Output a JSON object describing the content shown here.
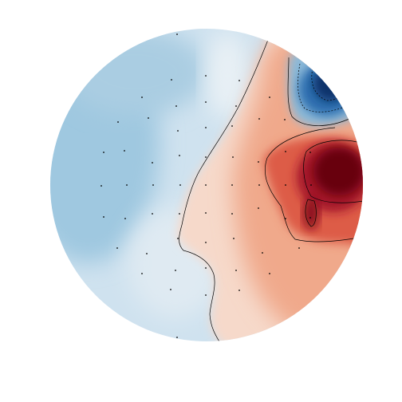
{
  "figure": {
    "type": "eeg-topomap",
    "colormap": "RdBu_r",
    "colors": {
      "deep_blue": "#08306b",
      "mid_blue": "#2f6fb0",
      "light_blue": "#a7cde3",
      "pale_blue": "#dbe9f3",
      "neutral": "#f4f1ef",
      "pale_red": "#f6cbb4",
      "mid_red": "#e07a5c",
      "red": "#c21f2c",
      "deep_red": "#67000d",
      "contour": "#000000",
      "sensor": "#000000"
    },
    "sensor_count": 59,
    "contours": "enabled"
  }
}
